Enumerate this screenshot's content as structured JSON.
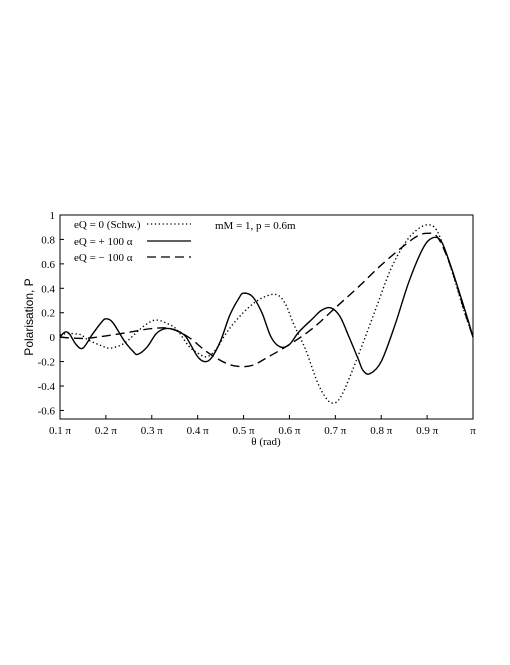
{
  "chart_data": {
    "type": "line",
    "xlabel": "θ (rad)",
    "ylabel": "Polarisation,  P",
    "annotation": "mM = 1,   p = 0.6m",
    "xlim": [
      0.1,
      1.0
    ],
    "ylim": [
      -0.67,
      1.0
    ],
    "x_unit": "π",
    "x_ticks": [
      0.1,
      0.2,
      0.3,
      0.4,
      0.5,
      0.6,
      0.7,
      0.8,
      0.9,
      1.0
    ],
    "x_tick_labels": [
      "0.1 π",
      "0.2 π",
      "0.3 π",
      "0.4 π",
      "0.5 π",
      "0.6 π",
      "0.7 π",
      "0.8 π",
      "0.9 π",
      "π"
    ],
    "y_ticks": [
      -0.6,
      -0.4,
      -0.2,
      0,
      0.2,
      0.4,
      0.6,
      0.8,
      1
    ],
    "y_tick_labels": [
      "-0.6",
      "-0.4",
      "-0.2",
      "0",
      "0.2",
      "0.4",
      "0.6",
      "0.8",
      "1"
    ],
    "grid": false,
    "legend_position": "top-left",
    "series": [
      {
        "name": "eQ = 0  (Schw.)",
        "style": "dotted",
        "color": "#000000",
        "points": [
          [
            0.1,
            0.02
          ],
          [
            0.12,
            0.03
          ],
          [
            0.145,
            0.02
          ],
          [
            0.16,
            -0.02
          ],
          [
            0.19,
            -0.07
          ],
          [
            0.21,
            -0.09
          ],
          [
            0.24,
            -0.05
          ],
          [
            0.27,
            0.05
          ],
          [
            0.29,
            0.11
          ],
          [
            0.31,
            0.14
          ],
          [
            0.335,
            0.11
          ],
          [
            0.355,
            0.06
          ],
          [
            0.38,
            -0.07
          ],
          [
            0.4,
            -0.13
          ],
          [
            0.42,
            -0.16
          ],
          [
            0.44,
            -0.1
          ],
          [
            0.46,
            0.02
          ],
          [
            0.48,
            0.12
          ],
          [
            0.51,
            0.24
          ],
          [
            0.54,
            0.32
          ],
          [
            0.57,
            0.35
          ],
          [
            0.59,
            0.28
          ],
          [
            0.61,
            0.1
          ],
          [
            0.635,
            -0.1
          ],
          [
            0.66,
            -0.36
          ],
          [
            0.68,
            -0.5
          ],
          [
            0.695,
            -0.54
          ],
          [
            0.71,
            -0.5
          ],
          [
            0.73,
            -0.34
          ],
          [
            0.76,
            -0.05
          ],
          [
            0.79,
            0.25
          ],
          [
            0.82,
            0.55
          ],
          [
            0.85,
            0.76
          ],
          [
            0.875,
            0.87
          ],
          [
            0.9,
            0.92
          ],
          [
            0.92,
            0.88
          ],
          [
            0.94,
            0.7
          ],
          [
            0.96,
            0.47
          ],
          [
            0.98,
            0.22
          ],
          [
            1.0,
            0.0
          ]
        ]
      },
      {
        "name": "eQ = + 100 α",
        "style": "solid",
        "color": "#000000",
        "points": [
          [
            0.1,
            0.0
          ],
          [
            0.11,
            0.04
          ],
          [
            0.12,
            0.03
          ],
          [
            0.135,
            -0.06
          ],
          [
            0.15,
            -0.09
          ],
          [
            0.17,
            0.02
          ],
          [
            0.19,
            0.12
          ],
          [
            0.2,
            0.15
          ],
          [
            0.215,
            0.12
          ],
          [
            0.24,
            -0.03
          ],
          [
            0.26,
            -0.12
          ],
          [
            0.27,
            -0.14
          ],
          [
            0.29,
            -0.08
          ],
          [
            0.31,
            0.03
          ],
          [
            0.33,
            0.07
          ],
          [
            0.35,
            0.06
          ],
          [
            0.37,
            0.02
          ],
          [
            0.38,
            -0.03
          ],
          [
            0.4,
            -0.16
          ],
          [
            0.415,
            -0.2
          ],
          [
            0.43,
            -0.17
          ],
          [
            0.45,
            -0.03
          ],
          [
            0.47,
            0.18
          ],
          [
            0.49,
            0.32
          ],
          [
            0.5,
            0.36
          ],
          [
            0.52,
            0.33
          ],
          [
            0.54,
            0.2
          ],
          [
            0.56,
            0.0
          ],
          [
            0.58,
            -0.08
          ],
          [
            0.6,
            -0.06
          ],
          [
            0.62,
            0.04
          ],
          [
            0.65,
            0.15
          ],
          [
            0.67,
            0.22
          ],
          [
            0.69,
            0.24
          ],
          [
            0.71,
            0.17
          ],
          [
            0.73,
            0.0
          ],
          [
            0.75,
            -0.18
          ],
          [
            0.76,
            -0.27
          ],
          [
            0.775,
            -0.3
          ],
          [
            0.8,
            -0.2
          ],
          [
            0.83,
            0.1
          ],
          [
            0.86,
            0.45
          ],
          [
            0.89,
            0.72
          ],
          [
            0.91,
            0.81
          ],
          [
            0.93,
            0.79
          ],
          [
            0.95,
            0.6
          ],
          [
            0.97,
            0.37
          ],
          [
            0.99,
            0.13
          ],
          [
            1.0,
            0.0
          ]
        ]
      },
      {
        "name": "eQ = − 100 α",
        "style": "dashed",
        "color": "#000000",
        "points": [
          [
            0.1,
            0.0
          ],
          [
            0.15,
            -0.01
          ],
          [
            0.2,
            0.01
          ],
          [
            0.25,
            0.04
          ],
          [
            0.3,
            0.07
          ],
          [
            0.34,
            0.07
          ],
          [
            0.38,
            0.0
          ],
          [
            0.42,
            -0.12
          ],
          [
            0.46,
            -0.21
          ],
          [
            0.49,
            -0.24
          ],
          [
            0.52,
            -0.23
          ],
          [
            0.55,
            -0.17
          ],
          [
            0.6,
            -0.06
          ],
          [
            0.65,
            0.07
          ],
          [
            0.7,
            0.24
          ],
          [
            0.75,
            0.41
          ],
          [
            0.8,
            0.59
          ],
          [
            0.85,
            0.75
          ],
          [
            0.88,
            0.83
          ],
          [
            0.9,
            0.85
          ],
          [
            0.92,
            0.83
          ],
          [
            0.94,
            0.69
          ],
          [
            0.96,
            0.48
          ],
          [
            0.98,
            0.23
          ],
          [
            1.0,
            0.0
          ]
        ]
      }
    ]
  }
}
